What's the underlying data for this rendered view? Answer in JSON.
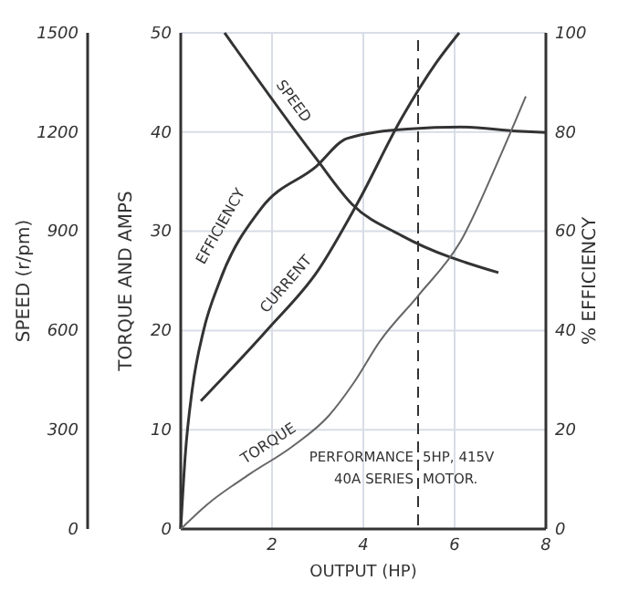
{
  "chart_data": {
    "type": "line",
    "xlabel": "OUTPUT (HP)",
    "ylabel": "TORQUE AND AMPS",
    "y2label": "% EFFICIENCY",
    "y3label": "SPEED (r/pm)",
    "xlim": [
      0,
      8
    ],
    "xticks": [
      2,
      4,
      6,
      8
    ],
    "ylim": [
      0,
      50
    ],
    "yticks": [
      0,
      10,
      20,
      30,
      40,
      50
    ],
    "y2lim": [
      0,
      100
    ],
    "y2ticks": [
      0,
      20,
      40,
      60,
      80,
      100
    ],
    "y3lim": [
      0,
      1500
    ],
    "y3ticks": [
      0,
      300,
      600,
      900,
      1200,
      1500
    ],
    "grid": true,
    "marker": "none",
    "line_style": "solid",
    "ref_lines": [
      {
        "axis": "x",
        "value": 5.2,
        "line_style": "dashed"
      }
    ],
    "annotations": [
      "PERFORMANCE",
      "5HP, 415V",
      "40A SERIES",
      "MOTOR."
    ],
    "series": [
      {
        "name": "SPEED",
        "color": "#333333",
        "axis": "y3",
        "x": [
          0.96,
          2.96,
          3.76,
          4.84,
          6.96
        ],
        "values": [
          1500,
          1121,
          981,
          887,
          775
        ]
      },
      {
        "name": "EFFICIENCY",
        "color": "#333333",
        "axis": "y2",
        "x": [
          0,
          0.1,
          0.25,
          0.5,
          0.84,
          1.76,
          2.96,
          3.64,
          4.96,
          6.16,
          7.36,
          8
        ],
        "values": [
          0,
          15,
          28,
          40,
          49.6,
          64.6,
          73,
          78.7,
          80.6,
          81,
          80.2,
          79.9
        ]
      },
      {
        "name": "CURRENT",
        "color": "#333333",
        "x": [
          0.44,
          1.92,
          3.0,
          3.88,
          4.84,
          5.6,
          6.1
        ],
        "values": [
          12.9,
          20.2,
          26,
          32.9,
          41.4,
          47,
          50
        ]
      },
      {
        "name": "TORQUE",
        "color": "#666666",
        "x": [
          0,
          0.56,
          1.5,
          2.44,
          3.24,
          3.8,
          4.36,
          5.2,
          6.12,
          7.04,
          7.56
        ],
        "values": [
          0,
          2.4,
          5.5,
          8.3,
          11.4,
          14.8,
          18.9,
          23.5,
          28.9,
          38,
          43.6
        ]
      }
    ]
  }
}
